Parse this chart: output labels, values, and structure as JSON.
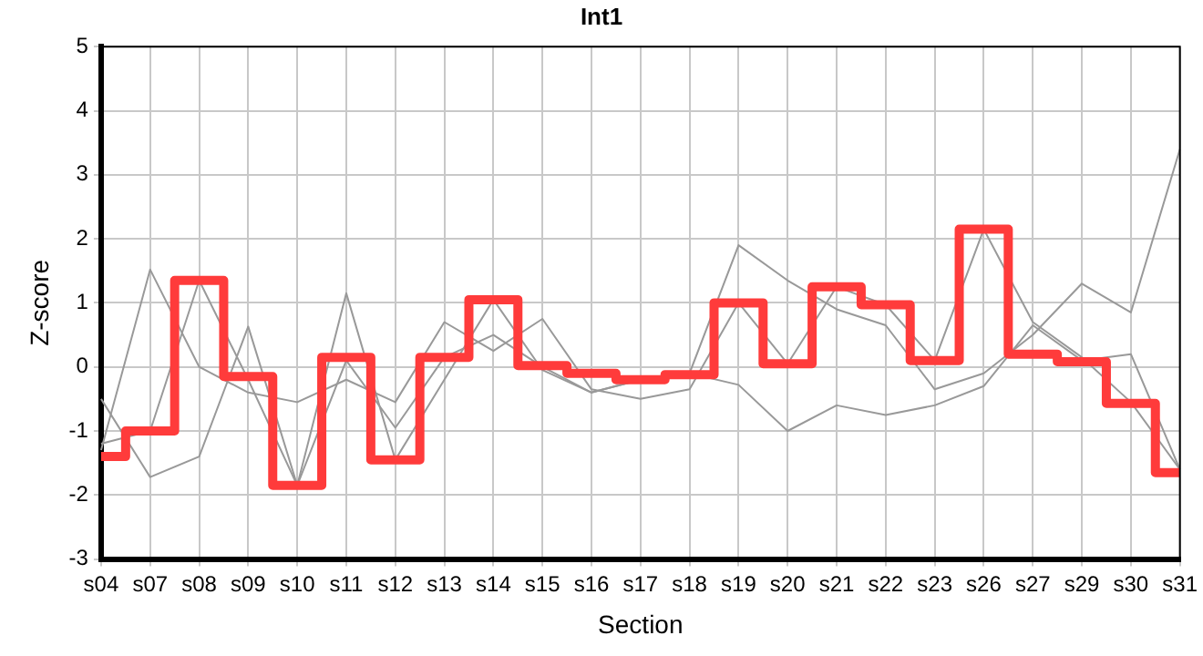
{
  "chart_data": {
    "type": "line",
    "title": "Int1",
    "xlabel": "Section",
    "ylabel": "Z-score",
    "categories": [
      "s04",
      "s07",
      "s08",
      "s09",
      "s10",
      "s11",
      "s12",
      "s13",
      "s14",
      "s15",
      "s16",
      "s17",
      "s18",
      "s19",
      "s20",
      "s21",
      "s22",
      "s23",
      "s26",
      "s27",
      "s29",
      "s30",
      "s31"
    ],
    "series": [
      {
        "type": "line",
        "color": "#999999",
        "values": [
          -0.5,
          -1.72,
          -1.4,
          0.63,
          -1.85,
          0.1,
          -0.95,
          0.15,
          0.5,
          0.0,
          -0.4,
          -0.2,
          -0.1,
          1.9,
          1.35,
          0.9,
          0.65,
          -0.35,
          -0.1,
          0.5,
          1.3,
          0.85,
          3.4
        ]
      },
      {
        "type": "line",
        "color": "#999999",
        "values": [
          -1.3,
          1.52,
          0.0,
          -0.4,
          -0.55,
          -0.2,
          -0.55,
          0.7,
          0.25,
          0.75,
          -0.35,
          -0.5,
          -0.35,
          1.0,
          0.05,
          1.25,
          0.97,
          0.1,
          2.15,
          0.7,
          0.15,
          -0.55,
          -1.6
        ]
      },
      {
        "type": "line",
        "color": "#999999",
        "values": [
          -1.2,
          -1.0,
          1.35,
          -0.2,
          -1.85,
          1.15,
          -1.45,
          -0.2,
          1.05,
          -0.05,
          -0.4,
          -0.2,
          -0.1,
          -0.28,
          -1.0,
          -0.6,
          -0.75,
          -0.6,
          -0.3,
          0.65,
          0.1,
          0.2,
          -1.6
        ]
      },
      {
        "type": "step",
        "color": "#ff3b3b",
        "values": [
          -1.4,
          -1.0,
          1.35,
          -0.15,
          -1.85,
          0.15,
          -1.45,
          0.15,
          1.05,
          0.02,
          -0.1,
          -0.2,
          -0.12,
          1.0,
          0.05,
          1.25,
          0.97,
          0.1,
          2.15,
          0.2,
          0.08,
          -0.57,
          -1.65
        ]
      }
    ],
    "ylim": [
      -3,
      5
    ],
    "yticks": [
      -3,
      -2,
      -1,
      0,
      1,
      2,
      3,
      4,
      5
    ],
    "grid": true,
    "legend": false,
    "marker": "none"
  }
}
